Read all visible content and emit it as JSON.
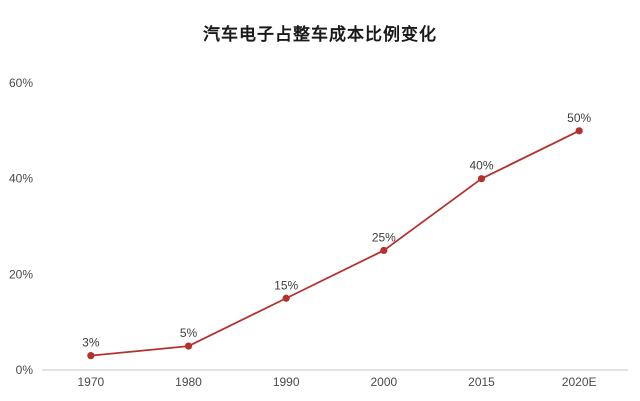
{
  "chart_data": {
    "type": "line",
    "title": "汽车电子占整车成本比例变化",
    "categories": [
      "1970",
      "1980",
      "1990",
      "2000",
      "2015",
      "2020E"
    ],
    "values": [
      3,
      5,
      15,
      25,
      40,
      50
    ],
    "point_labels": [
      "3%",
      "5%",
      "15%",
      "25%",
      "40%",
      "50%"
    ],
    "series_name": "汽车电子占整车成本比例",
    "xlabel": "",
    "ylabel": "",
    "ylim": [
      0,
      60
    ],
    "yticks": [
      {
        "value": 0,
        "label": "0%"
      },
      {
        "value": 20,
        "label": "20%"
      },
      {
        "value": 40,
        "label": "40%"
      },
      {
        "value": 60,
        "label": "60%"
      }
    ],
    "grid": false,
    "legend_position": "none",
    "line_color": "#b4322e",
    "marker_color": "#b4322e",
    "axis_color": "#d9d9d9",
    "tick_label_color": "#4a4a4a",
    "point_label_color": "#3d3d3d",
    "background_color": "#ffffff"
  }
}
